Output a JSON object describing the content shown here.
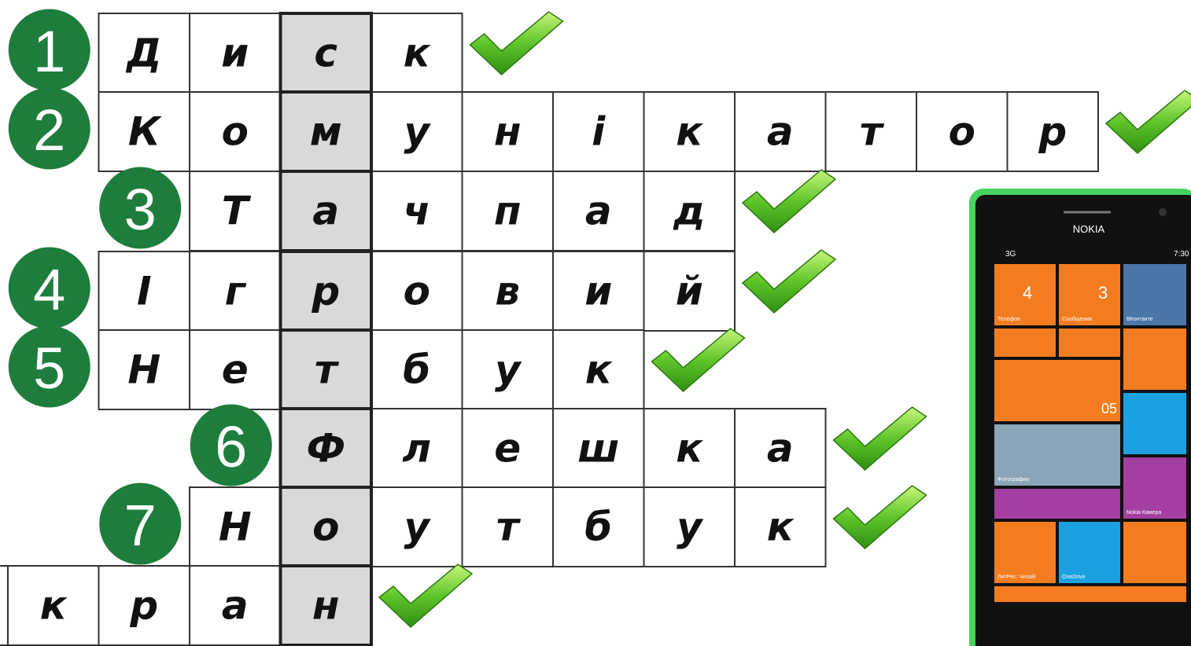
{
  "crossword": {
    "rows": [
      {
        "number": "1",
        "cells": [
          "Д",
          "и",
          "с",
          "к"
        ]
      },
      {
        "number": "2",
        "cells": [
          "К",
          "о",
          "м",
          "у",
          "н",
          "і",
          "к",
          "а",
          "т",
          "о",
          "р"
        ]
      },
      {
        "number": "3",
        "cells": [
          "Т",
          "а",
          "ч",
          "п",
          "а",
          "д"
        ]
      },
      {
        "number": "4",
        "cells": [
          "І",
          "г",
          "р",
          "о",
          "в",
          "и",
          "й"
        ]
      },
      {
        "number": "5",
        "cells": [
          "Н",
          "е",
          "т",
          "б",
          "у",
          "к"
        ]
      },
      {
        "number": "6",
        "cells": [
          "Ф",
          "л",
          "е",
          "ш",
          "к",
          "а"
        ]
      },
      {
        "number": "7",
        "cells": [
          "Н",
          "о",
          "у",
          "т",
          "б",
          "у",
          "к"
        ]
      },
      {
        "cells": [
          "к",
          "р",
          "а",
          "н"
        ]
      }
    ]
  },
  "phone": {
    "brand": "NOKIA",
    "network": "3G",
    "time": "7:30",
    "tiles": {
      "phone": "Телефон",
      "phone_count": "4",
      "messages": "Сообщения",
      "messages_count": "3",
      "vk": "ВКонтакте",
      "date": "05",
      "photos": "Фотографии",
      "camera": "Nokia Камера",
      "litres": "ЛитРес: Читай!",
      "onedrive": "OneDrive"
    }
  }
}
